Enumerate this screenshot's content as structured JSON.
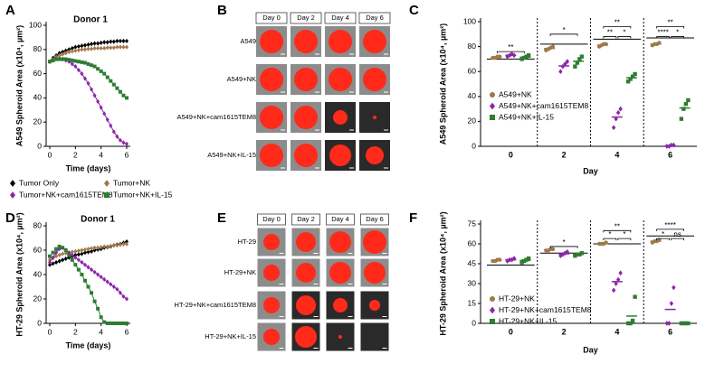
{
  "chart_data": [
    {
      "panel": "A",
      "type": "line",
      "title": "Donor 1",
      "y_label": "A549 Spheroid Area (x10⁴, µm²)",
      "x_label": "Time (days)",
      "xlim": [
        0,
        6
      ],
      "xticks": [
        0,
        2,
        4,
        6
      ],
      "ylim": [
        0,
        100
      ],
      "yticks": [
        0,
        20,
        40,
        60,
        80,
        100
      ],
      "legend": "below",
      "x": [
        0,
        0.25,
        0.5,
        0.75,
        1,
        1.25,
        1.5,
        1.75,
        2,
        2.25,
        2.5,
        2.75,
        3,
        3.25,
        3.5,
        3.75,
        4,
        4.25,
        4.5,
        4.75,
        5,
        5.25,
        5.5,
        5.75,
        6
      ],
      "series": [
        {
          "name": "Tumor Only",
          "color": "#000000",
          "marker": "diamond",
          "values": [
            70,
            73,
            75,
            77,
            78,
            79,
            80,
            81,
            82,
            82.5,
            83,
            83.5,
            84,
            84.5,
            85,
            85,
            85.5,
            86,
            86,
            86.5,
            86.5,
            87,
            87,
            87,
            87
          ]
        },
        {
          "name": "Tumor+NK",
          "color": "#a0784a",
          "marker": "diamond",
          "values": [
            70,
            72,
            74,
            75,
            76,
            77,
            78,
            78.5,
            79,
            79.5,
            80,
            80,
            80.5,
            80.5,
            81,
            81,
            81,
            81,
            81.5,
            81.5,
            81.5,
            82,
            82,
            82,
            82
          ]
        },
        {
          "name": "Tumor+NK+cam1615TEM8",
          "color": "#8e24aa",
          "marker": "diamond",
          "values": [
            70,
            71,
            72,
            72.5,
            72,
            71,
            70,
            68,
            66,
            63,
            60,
            56,
            52,
            47,
            42,
            37,
            32,
            27,
            22,
            17,
            12,
            8,
            5,
            3,
            2
          ]
        },
        {
          "name": "Tumor+NK+IL-15",
          "color": "#2e7d32",
          "marker": "square",
          "values": [
            70,
            71,
            72,
            72,
            72,
            72,
            71.5,
            71,
            70.5,
            70,
            69.5,
            69,
            68,
            67,
            66,
            64,
            62,
            60,
            57,
            54,
            51,
            48,
            45,
            42,
            40
          ]
        }
      ]
    },
    {
      "panel": "C",
      "type": "scatter",
      "y_label": "A549 Spheroid Area (x10⁴, µm²)",
      "x_label": "Day",
      "categories": [
        "0",
        "2",
        "4",
        "6"
      ],
      "ylim": [
        0,
        100
      ],
      "yticks": [
        0,
        20,
        40,
        60,
        80,
        100
      ],
      "legend": "lower left",
      "reference_values": [
        70,
        82,
        86,
        87
      ],
      "series": [
        {
          "name": "A549+NK",
          "color": "#a0784a",
          "marker": "circle",
          "values": [
            [
              71,
              71,
              72,
              72
            ],
            [
              77,
              78,
              79,
              80
            ],
            [
              80,
              81,
              82,
              82
            ],
            [
              81,
              82,
              82,
              83
            ]
          ],
          "means": [
            71.5,
            78.5,
            81.25,
            82
          ]
        },
        {
          "name": "A549+NK+cam1615TEM8",
          "color": "#8e24aa",
          "marker": "diamond",
          "values": [
            [
              72,
              73,
              74,
              73
            ],
            [
              60,
              64,
              66,
              68
            ],
            [
              15,
              22,
              27,
              30
            ],
            [
              0,
              0,
              1,
              1
            ]
          ],
          "means": [
            73,
            64.5,
            23.5,
            0.5
          ]
        },
        {
          "name": "A549+NK+IL-15",
          "color": "#2e7d32",
          "marker": "square",
          "values": [
            [
              70,
              71,
              72,
              73
            ],
            [
              64,
              67,
              70,
              72
            ],
            [
              52,
              54,
              56,
              58
            ],
            [
              22,
              30,
              34,
              37
            ]
          ],
          "means": [
            71.5,
            68.25,
            55,
            30.75
          ]
        }
      ],
      "annotations": [
        {
          "label": "**",
          "day": "0",
          "between": [
            "A549+NK",
            "A549+NK+IL-15"
          ],
          "y": 76
        },
        {
          "label": "*",
          "day": "2",
          "between": [
            "A549+NK",
            "A549+NK+IL-15"
          ],
          "y": 90
        },
        {
          "label": "**",
          "day": "4",
          "between": [
            "A549+NK",
            "A549+NK+IL-15"
          ],
          "y": 96
        },
        {
          "label": "**",
          "day": "4",
          "between": [
            "A549+NK",
            "A549+NK+cam1615TEM8"
          ],
          "y": 88
        },
        {
          "label": "*",
          "day": "4",
          "between": [
            "A549+NK+cam1615TEM8",
            "A549+NK+IL-15"
          ],
          "y": 88
        },
        {
          "label": "**",
          "day": "6",
          "between": [
            "A549+NK",
            "A549+NK+IL-15"
          ],
          "y": 96
        },
        {
          "label": "****",
          "day": "6",
          "between": [
            "A549+NK",
            "A549+NK+cam1615TEM8"
          ],
          "y": 88
        },
        {
          "label": "*",
          "day": "6",
          "between": [
            "A549+NK+cam1615TEM8",
            "A549+NK+IL-15"
          ],
          "y": 88
        }
      ]
    },
    {
      "panel": "D",
      "type": "line",
      "title": "Donor 1",
      "y_label": "HT-29 Spheroid Area (x10⁴, µm²)",
      "x_label": "Time (days)",
      "xlim": [
        0,
        6
      ],
      "xticks": [
        0,
        2,
        4,
        6
      ],
      "ylim": [
        0,
        80
      ],
      "yticks": [
        0,
        20,
        40,
        60,
        80
      ],
      "x": [
        0,
        0.25,
        0.5,
        0.75,
        1,
        1.25,
        1.5,
        1.75,
        2,
        2.25,
        2.5,
        2.75,
        3,
        3.25,
        3.5,
        3.75,
        4,
        4.25,
        4.5,
        4.75,
        5,
        5.25,
        5.5,
        5.75,
        6
      ],
      "series": [
        {
          "color": "#000000",
          "marker": "diamond",
          "values": [
            48,
            49,
            50,
            51,
            52,
            53,
            54,
            55,
            56,
            56.5,
            57,
            58,
            58.5,
            59,
            60,
            60.5,
            61,
            62,
            62.5,
            63,
            64,
            64.5,
            65,
            66,
            67
          ]
        },
        {
          "color": "#a0784a",
          "marker": "diamond",
          "values": [
            52,
            53.5,
            55,
            56,
            57,
            57.5,
            58,
            58.5,
            59,
            59.5,
            60,
            60.5,
            61,
            61.5,
            62,
            62,
            62.5,
            63,
            63,
            63.5,
            64,
            64,
            64.5,
            65,
            65
          ]
        },
        {
          "color": "#8e24aa",
          "marker": "diamond",
          "values": [
            50,
            54,
            58,
            61,
            62,
            60,
            58,
            56,
            54,
            52,
            50,
            48,
            46,
            44,
            42,
            40,
            38,
            36,
            34,
            32,
            30,
            28,
            25,
            22,
            20
          ]
        },
        {
          "color": "#2e7d32",
          "marker": "square",
          "values": [
            55,
            58,
            61,
            63,
            62,
            60,
            56,
            52,
            48,
            44,
            40,
            35,
            30,
            25,
            18,
            12,
            5,
            1,
            0,
            0,
            0,
            0,
            0,
            0,
            0
          ]
        }
      ]
    },
    {
      "panel": "F",
      "type": "scatter",
      "y_label": "HT-29 Spheroid Area (x10⁴, µm²)",
      "x_label": "Day",
      "categories": [
        "0",
        "2",
        "4",
        "6"
      ],
      "ylim": [
        0,
        75
      ],
      "yticks": [
        0,
        15,
        30,
        45,
        60,
        75
      ],
      "legend": "lower left",
      "reference_values": [
        44,
        53,
        60,
        66
      ],
      "series": [
        {
          "name": "HT-29+NK",
          "color": "#a0784a",
          "marker": "circle",
          "values": [
            [
              47,
              47,
              48,
              48
            ],
            [
              55,
              55,
              56,
              56
            ],
            [
              60,
              60,
              60,
              61
            ],
            [
              61,
              62,
              62,
              63
            ]
          ],
          "means": [
            47.5,
            55.5,
            60.25,
            62
          ]
        },
        {
          "name": "HT-29+NK+cam1615TEM8",
          "color": "#8e24aa",
          "marker": "diamond",
          "values": [
            [
              47,
              48,
              48,
              49
            ],
            [
              51,
              52,
              53,
              54
            ],
            [
              25,
              30,
              33,
              38
            ],
            [
              0,
              0,
              15,
              27
            ]
          ],
          "means": [
            48,
            52.5,
            31.5,
            10.5
          ]
        },
        {
          "name": "HT-29+NK+IL-15",
          "color": "#2e7d32",
          "marker": "square",
          "values": [
            [
              46,
              47,
              48,
              49
            ],
            [
              51,
              52,
              52,
              53
            ],
            [
              0,
              0,
              2,
              20
            ],
            [
              0,
              0,
              0,
              0
            ]
          ],
          "means": [
            47.5,
            52,
            5.5,
            0
          ]
        }
      ],
      "annotations": [
        {
          "label": "*",
          "day": "2",
          "between": [
            "HT-29+NK",
            "HT-29+NK+IL-15"
          ],
          "y": 58
        },
        {
          "label": "**",
          "day": "4",
          "between": [
            "HT-29+NK",
            "HT-29+NK+IL-15"
          ],
          "y": 70
        },
        {
          "label": "*",
          "day": "4",
          "between": [
            "HT-29+NK",
            "HT-29+NK+cam1615TEM8"
          ],
          "y": 64
        },
        {
          "label": "*",
          "day": "4",
          "between": [
            "HT-29+NK+cam1615TEM8",
            "HT-29+NK+IL-15"
          ],
          "y": 64
        },
        {
          "label": "****",
          "day": "6",
          "between": [
            "HT-29+NK",
            "HT-29+NK+IL-15"
          ],
          "y": 71
        },
        {
          "label": "*",
          "day": "6",
          "between": [
            "HT-29+NK",
            "HT-29+NK+cam1615TEM8"
          ],
          "y": 64
        },
        {
          "label": "ns",
          "day": "6",
          "between": [
            "HT-29+NK+cam1615TEM8",
            "HT-29+NK+IL-15"
          ],
          "y": 64
        }
      ]
    }
  ],
  "image_panels": [
    {
      "panel": "B",
      "columns": [
        "Day 0",
        "Day 2",
        "Day 4",
        "Day 6"
      ],
      "rows": [
        "A549",
        "A549+NK",
        "A549+NK+cam1615TEM8",
        "A549+NK+IL-15"
      ]
    },
    {
      "panel": "E",
      "columns": [
        "Day 0",
        "Day 2",
        "Day 4",
        "Day 6"
      ],
      "rows": [
        "HT-29",
        "HT-29+NK",
        "HT-29+NK+cam1615TEM8",
        "HT-29+NK+IL-15"
      ]
    }
  ]
}
